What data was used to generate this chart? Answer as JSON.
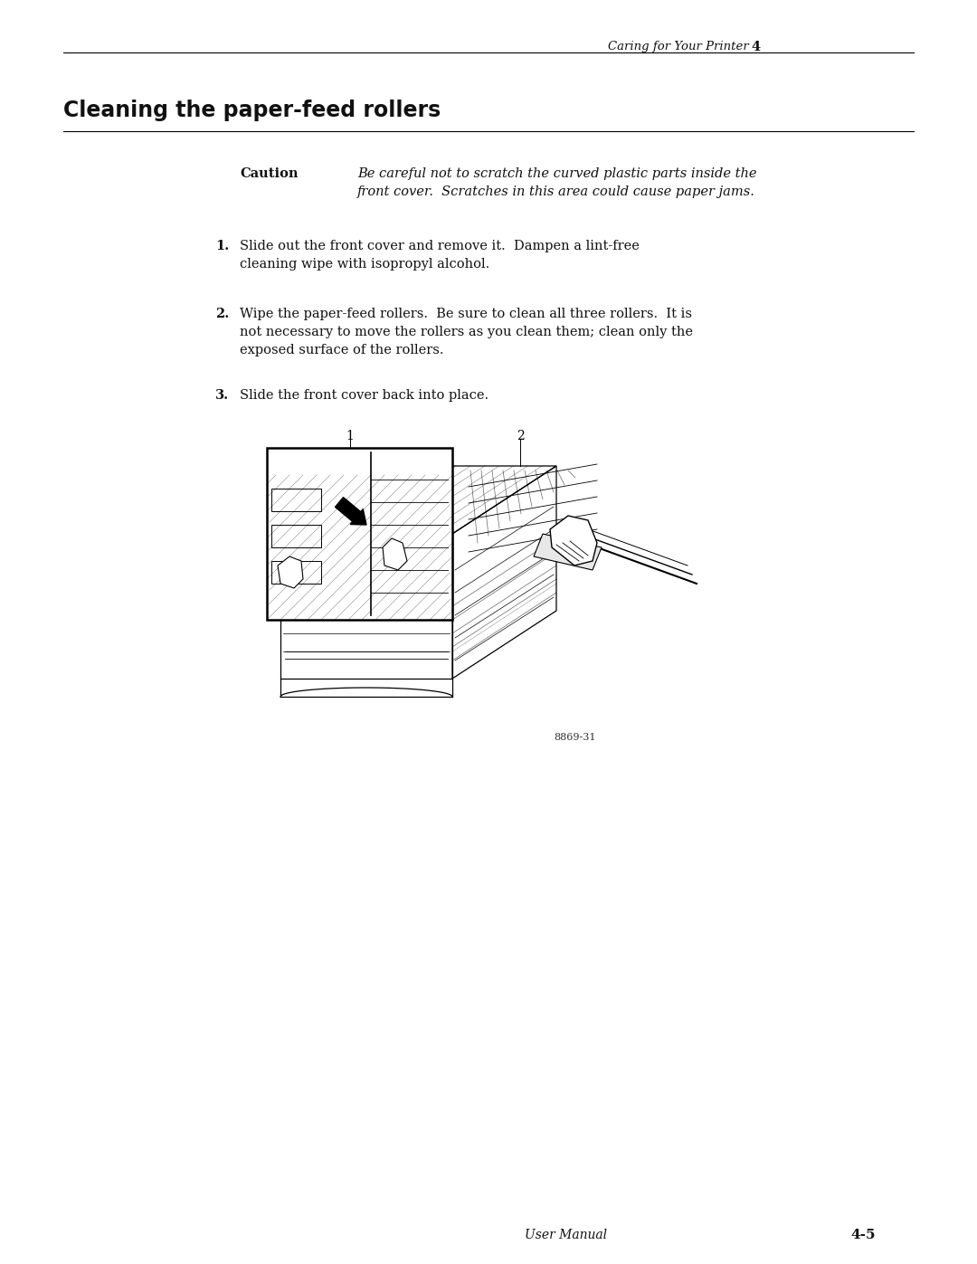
{
  "page_width": 10.8,
  "page_height": 13.97,
  "bg_color": "#ffffff",
  "header_text": "Caring for Your Printer",
  "header_chapter": "4",
  "header_font_size": 9.5,
  "title": "Cleaning the paper-feed rollers",
  "title_font_size": 17,
  "caution_label": "Caution",
  "caution_text_line1": "Be careful not to scratch the curved plastic parts inside the",
  "caution_text_line2": "front cover.  Scratches in this area could cause paper jams.",
  "step1_line1": "Slide out the front cover and remove it.  Dampen a lint-free",
  "step1_line2": "cleaning wipe with isopropyl alcohol.",
  "step2_line1": "Wipe the paper-feed rollers.  Be sure to clean all three rollers.  It is",
  "step2_line2": "not necessary to move the rollers as you clean them; clean only the",
  "step2_line3": "exposed surface of the rollers.",
  "step3_line1": "Slide the front cover back into place.",
  "figure_caption": "8869-31",
  "footer_left": "User Manual",
  "footer_right": "4-5",
  "body_font_size": 10.5,
  "step_font_size": 10.5
}
